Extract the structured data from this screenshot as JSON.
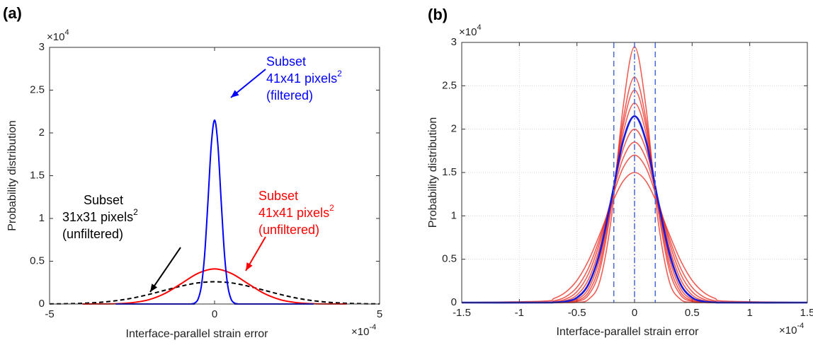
{
  "chart_data": [
    {
      "type": "line",
      "label": "(a)",
      "xlabel": "Interface-parallel strain error",
      "ylabel": "Probability distribution",
      "x_exponent_base": "×10",
      "x_exponent": "-4",
      "y_exponent_base": "×10",
      "y_exponent": "4",
      "xlim": [
        -5,
        5
      ],
      "ylim": [
        0,
        3
      ],
      "xticks": [
        -5,
        0,
        5
      ],
      "yticks": [
        0,
        0.5,
        1,
        1.5,
        2,
        2.5,
        3
      ],
      "grid": false,
      "series": [
        {
          "color": "#000000",
          "style": "dashed",
          "x": [
            -5,
            -4.5,
            -4,
            -3.5,
            -3,
            -2.5,
            -2,
            -1.5,
            -1,
            -0.5,
            0,
            0.5,
            1,
            1.5,
            2,
            2.5,
            3,
            3.5,
            4,
            4.5,
            5
          ],
          "values": [
            0.0012,
            0.0034,
            0.0085,
            0.019,
            0.038,
            0.068,
            0.111,
            0.161,
            0.21,
            0.247,
            0.26,
            0.247,
            0.21,
            0.161,
            0.111,
            0.068,
            0.038,
            0.019,
            0.0085,
            0.0034,
            0.0012
          ]
        },
        {
          "color": "#ff0000",
          "style": "solid",
          "x": [
            -4,
            -3.5,
            -3,
            -2.5,
            -2,
            -1.5,
            -1,
            -0.5,
            0,
            0.5,
            1,
            1.5,
            2,
            2.5,
            3,
            3.5,
            4
          ],
          "values": [
            0,
            0.001,
            0.003,
            0.015,
            0.049,
            0.124,
            0.241,
            0.359,
            0.41,
            0.359,
            0.241,
            0.124,
            0.049,
            0.015,
            0.003,
            0.001,
            0
          ]
        },
        {
          "color": "#0000ff",
          "style": "solid",
          "x": [
            -3,
            -0.8,
            -0.7,
            -0.6,
            -0.5,
            -0.4,
            -0.3,
            -0.2,
            -0.1,
            0,
            0.1,
            0.2,
            0.3,
            0.4,
            0.5,
            0.6,
            0.7,
            0.8,
            3
          ],
          "values": [
            0,
            0,
            0.002,
            0.012,
            0.057,
            0.211,
            0.582,
            1.202,
            1.86,
            2.15,
            1.86,
            1.202,
            0.582,
            0.211,
            0.057,
            0.012,
            0.002,
            0,
            0
          ]
        }
      ],
      "annotations": [
        {
          "text": [
            "Subset",
            "41x41 pixels",
            "(filtered)"
          ],
          "superscript": "2",
          "color": "#0000ff"
        },
        {
          "text": [
            "Subset",
            "41x41 pixels",
            "(unfiltered)"
          ],
          "superscript": "2",
          "color": "#ff0000"
        },
        {
          "text": [
            "Subset",
            "31x31 pixels",
            "(unfiltered)"
          ],
          "superscript": "2",
          "color": "#000000"
        }
      ]
    },
    {
      "type": "line",
      "label": "(b)",
      "xlabel": "Interface-parallel strain error",
      "ylabel": "Probability distribution",
      "x_exponent_base": "×10",
      "x_exponent": "-4",
      "y_exponent_base": "×10",
      "y_exponent": "4",
      "xlim": [
        -1.5,
        1.5
      ],
      "ylim": [
        0,
        3
      ],
      "xticks": [
        -1.5,
        -1,
        -0.5,
        0,
        0.5,
        1,
        1.5
      ],
      "yticks": [
        0,
        0.5,
        1,
        1.5,
        2,
        2.5,
        3
      ],
      "grid": true,
      "x": [
        -1.5,
        -0.8,
        -0.7,
        -0.6,
        -0.5,
        -0.4,
        -0.3,
        -0.2,
        -0.1,
        0,
        0.1,
        0.2,
        0.3,
        0.4,
        0.5,
        0.6,
        0.7,
        0.8,
        1.5
      ],
      "series": [
        {
          "color": "#e8281f",
          "values": [
            0,
            0,
            0,
            0,
            0.003,
            0.037,
            0.252,
            0.989,
            2.245,
            2.95,
            2.245,
            0.989,
            0.252,
            0.037,
            0.003,
            0,
            0,
            0,
            0
          ]
        },
        {
          "color": "#e8281f",
          "values": [
            0,
            0,
            0,
            0.001,
            0.013,
            0.087,
            0.385,
            1.113,
            2.103,
            2.6,
            2.103,
            1.113,
            0.385,
            0.087,
            0.013,
            0.001,
            0,
            0,
            0
          ]
        },
        {
          "color": "#e8281f",
          "values": [
            0,
            0,
            0,
            0.003,
            0.022,
            0.12,
            0.449,
            1.153,
            2.029,
            2.45,
            2.029,
            1.153,
            0.449,
            0.12,
            0.022,
            0.003,
            0,
            0,
            0
          ]
        },
        {
          "color": "#e8281f",
          "values": [
            0,
            0,
            0.001,
            0.006,
            0.036,
            0.161,
            0.516,
            1.184,
            1.948,
            2.3,
            1.948,
            1.184,
            0.516,
            0.161,
            0.036,
            0.006,
            0.001,
            0,
            0
          ]
        },
        {
          "color": "#e8281f",
          "values": [
            0,
            0.001,
            0.004,
            0.022,
            0.087,
            0.268,
            0.645,
            1.21,
            1.764,
            2,
            1.764,
            1.21,
            0.645,
            0.268,
            0.087,
            0.022,
            0.004,
            0.001,
            0
          ]
        },
        {
          "color": "#e8281f",
          "values": [
            0,
            0.002,
            0.01,
            0.039,
            0.126,
            0.331,
            0.703,
            1.203,
            1.661,
            1.85,
            1.661,
            1.203,
            0.703,
            0.331,
            0.126,
            0.039,
            0.01,
            0.002,
            0
          ]
        },
        {
          "color": "#e8281f",
          "values": [
            0,
            0.005,
            0.02,
            0.065,
            0.176,
            0.398,
            0.751,
            1.183,
            1.552,
            1.7,
            1.552,
            1.183,
            0.751,
            0.398,
            0.176,
            0.065,
            0.02,
            0.005,
            0
          ]
        },
        {
          "color": "#e8281f",
          "values": [
            0,
            0.016,
            0.047,
            0.118,
            0.256,
            0.484,
            0.794,
            1.131,
            1.398,
            1.5,
            1.398,
            1.131,
            0.794,
            0.484,
            0.256,
            0.118,
            0.047,
            0.016,
            0
          ]
        },
        {
          "color": "#1a1adb",
          "values": [
            0,
            0,
            0.002,
            0.012,
            0.057,
            0.211,
            0.582,
            1.202,
            1.86,
            2.15,
            1.86,
            1.202,
            0.582,
            0.211,
            0.057,
            0.012,
            0.002,
            0,
            0
          ]
        }
      ],
      "vlines": [
        -0.18,
        0,
        0.18
      ],
      "vline_styles": [
        "dashed",
        "dashdot",
        "dashed"
      ],
      "vline_color": "#4a6ad8"
    }
  ]
}
